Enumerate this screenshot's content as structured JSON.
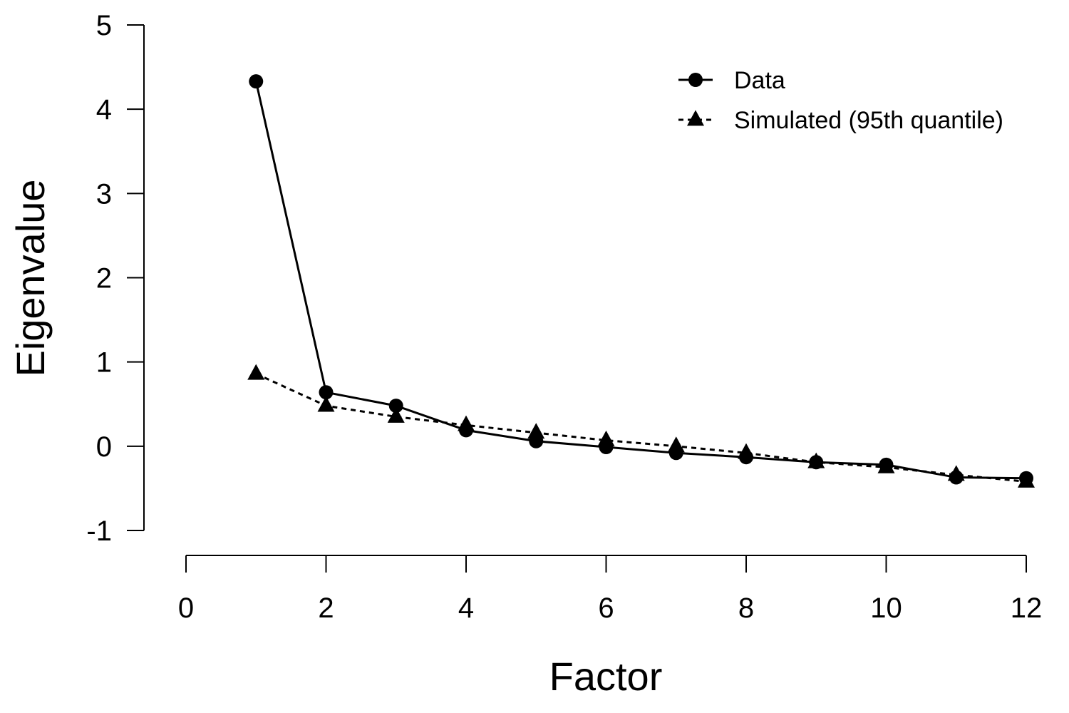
{
  "chart_data": {
    "type": "line",
    "xlabel": "Factor",
    "ylabel": "Eigenvalue",
    "xlim": [
      0,
      12
    ],
    "ylim": [
      -1,
      5
    ],
    "x_ticks": [
      0,
      2,
      4,
      6,
      8,
      10,
      12
    ],
    "y_ticks": [
      -1,
      0,
      1,
      2,
      3,
      4,
      5
    ],
    "grid": false,
    "legend_position": "top-right",
    "series": [
      {
        "name": "Data",
        "marker": "circle",
        "line_style": "solid",
        "color": "#000000",
        "x": [
          1,
          2,
          3,
          4,
          5,
          6,
          7,
          8,
          9,
          10,
          11,
          12
        ],
        "y": [
          4.33,
          0.64,
          0.48,
          0.19,
          0.06,
          -0.01,
          -0.08,
          -0.13,
          -0.19,
          -0.22,
          -0.37,
          -0.38
        ]
      },
      {
        "name": "Simulated (95th quantile)",
        "marker": "triangle",
        "line_style": "dotted",
        "color": "#000000",
        "x": [
          1,
          2,
          3,
          4,
          5,
          6,
          7,
          8,
          9,
          10,
          11,
          12
        ],
        "y": [
          0.86,
          0.48,
          0.35,
          0.25,
          0.16,
          0.07,
          0.0,
          -0.08,
          -0.19,
          -0.25,
          -0.34,
          -0.42
        ]
      }
    ]
  }
}
